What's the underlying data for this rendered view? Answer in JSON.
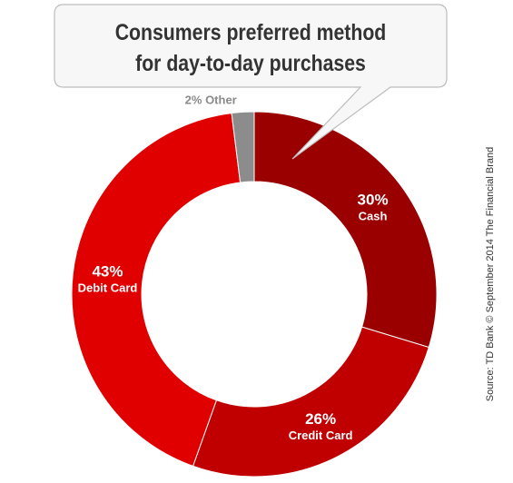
{
  "chart_data": {
    "type": "pie",
    "variant": "donut",
    "title": "Consumers preferred method for day-to-day purchases",
    "title_lines": [
      "Consumers preferred method",
      "for day-to-day purchases"
    ],
    "categories": [
      "Cash",
      "Credit Card",
      "Debit Card",
      "Other"
    ],
    "values": [
      30,
      26,
      43,
      2
    ],
    "value_labels": [
      "30%",
      "26%",
      "43%",
      "2%"
    ],
    "other_label": "2% Other",
    "colors": [
      "#9b0000",
      "#c00000",
      "#e10000",
      "#8c8c8c"
    ],
    "legend": "none",
    "source": "Source: TD Bank © September 2014 The Financial Brand"
  }
}
